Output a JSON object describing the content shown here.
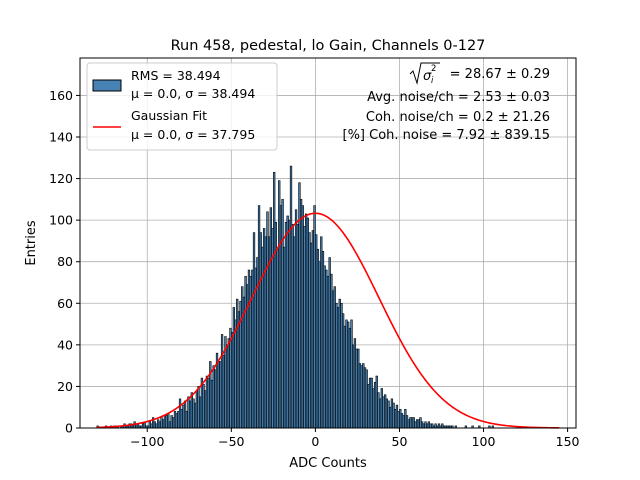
{
  "chart_data": {
    "type": "bar",
    "title": "Run 458, pedestal, lo Gain, Channels 0-127",
    "xlabel": "ADC Counts",
    "ylabel": "Entries",
    "xlim": [
      -140,
      155
    ],
    "ylim": [
      0,
      178
    ],
    "xticks": [
      -100,
      -50,
      0,
      50,
      100,
      150
    ],
    "xtick_labels": [
      "−100",
      "−50",
      "0",
      "50",
      "100",
      "150"
    ],
    "yticks": [
      0,
      20,
      40,
      60,
      80,
      100,
      120,
      140,
      160
    ],
    "ytick_labels": [
      "0",
      "20",
      "40",
      "60",
      "80",
      "100",
      "120",
      "140",
      "160"
    ],
    "grid": true,
    "legend_position": "top-left",
    "colors": {
      "bar_fill": "#4682b4",
      "bar_edge": "#000000",
      "fit": "#ff0000",
      "grid": "#b0b0b0"
    },
    "histogram": {
      "name": "RMS = 38.494",
      "stats": "μ = 0.0, σ = 38.494",
      "x_start": -130,
      "bin_width": 1,
      "counts": [
        1,
        0,
        0,
        0,
        0,
        1,
        0,
        0,
        1,
        0,
        1,
        1,
        1,
        0,
        1,
        1,
        2,
        1,
        1,
        2,
        2,
        1,
        3,
        2,
        2,
        1,
        1,
        2,
        3,
        1,
        1,
        3,
        2,
        5,
        3,
        2,
        4,
        3,
        5,
        4,
        6,
        6,
        7,
        3,
        6,
        5,
        8,
        7,
        8,
        14,
        9,
        11,
        13,
        8,
        15,
        13,
        17,
        14,
        12,
        18,
        20,
        15,
        24,
        21,
        18,
        25,
        24,
        32,
        23,
        30,
        28,
        36,
        32,
        32,
        45,
        35,
        44,
        40,
        43,
        48,
        46,
        58,
        52,
        62,
        56,
        61,
        68,
        63,
        73,
        69,
        76,
        73,
        76,
        94,
        77,
        82,
        107,
        94,
        87,
        96,
        92,
        104,
        92,
        106,
        96,
        123,
        99,
        86,
        119,
        107,
        110,
        87,
        99,
        102,
        100,
        126,
        98,
        92,
        105,
        98,
        118,
        110,
        107,
        97,
        103,
        101,
        94,
        89,
        95,
        107,
        93,
        86,
        80,
        92,
        85,
        78,
        76,
        73,
        82,
        74,
        66,
        68,
        60,
        58,
        62,
        60,
        55,
        49,
        52,
        51,
        48,
        52,
        40,
        43,
        38,
        38,
        31,
        30,
        31,
        29,
        28,
        21,
        24,
        24,
        19,
        22,
        25,
        17,
        14,
        19,
        15,
        16,
        14,
        13,
        10,
        14,
        12,
        9,
        11,
        8,
        9,
        7,
        6,
        9,
        6,
        4,
        5,
        5,
        5,
        3,
        4,
        4,
        5,
        3,
        2,
        3,
        2,
        3,
        2,
        2,
        1,
        2,
        1,
        2,
        1,
        2,
        1,
        1,
        1,
        1,
        1,
        1,
        0,
        1,
        0,
        0,
        0,
        0,
        0,
        1,
        0,
        0,
        0,
        1,
        0,
        0,
        0,
        1,
        0,
        0,
        0,
        0,
        0,
        1,
        0,
        1,
        0,
        0
      ]
    },
    "fit": {
      "name": "Gaussian Fit",
      "stats": "μ = 0.0, σ = 37.795",
      "mu": 0.0,
      "sigma": 37.795,
      "amplitude": 103.3,
      "x_range": [
        -130,
        145
      ]
    },
    "annotations": {
      "sigma_lhs": "σ",
      "sigma_sub": "i",
      "sigma_sup": "2",
      "sigma_rhs": "= 28.67 ± 0.29",
      "avg_noise": "Avg. noise/ch = 2.53 ± 0.03",
      "coh_noise": "Coh. noise/ch = 0.2 ± 21.26",
      "pct_coh_noise": "[%] Coh. noise = 7.92 ± 839.15"
    }
  }
}
